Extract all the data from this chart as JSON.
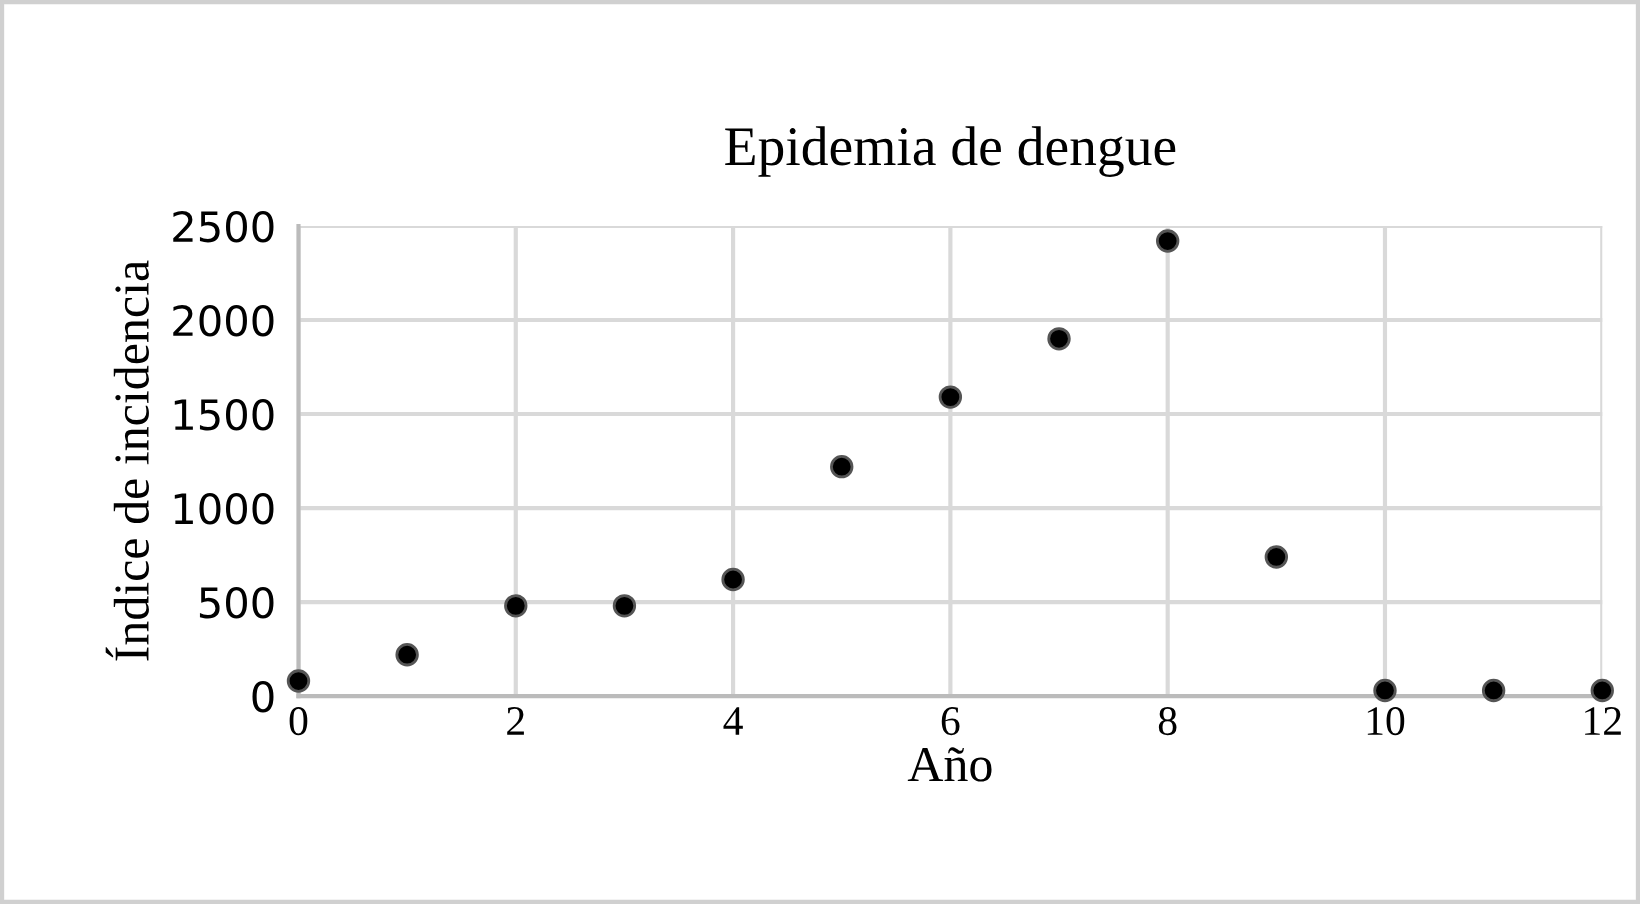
{
  "chart_data": {
    "type": "scatter",
    "title": "Epidemia de dengue",
    "xlabel": "Año",
    "ylabel": "Índice de incidencia",
    "x": [
      0,
      1,
      2,
      3,
      4,
      5,
      6,
      7,
      8,
      9,
      10,
      11,
      12
    ],
    "values": [
      80,
      220,
      480,
      480,
      620,
      1220,
      1590,
      1900,
      2420,
      740,
      30,
      30,
      30
    ],
    "color": "#000000",
    "marker": "circle",
    "xlim": [
      0,
      12
    ],
    "xticks": [
      0,
      2,
      4,
      6,
      8,
      10,
      12
    ],
    "ylim": [
      0,
      2500
    ],
    "yticks": [
      0,
      500,
      1000,
      1500,
      2000,
      2500
    ],
    "grid": true
  }
}
